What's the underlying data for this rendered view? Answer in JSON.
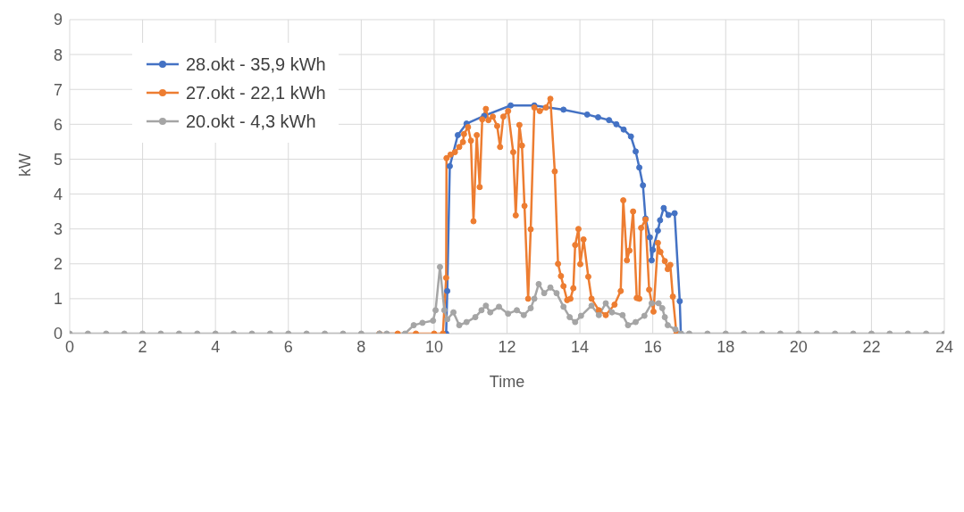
{
  "chart_data": {
    "type": "line",
    "xlabel": "Time",
    "ylabel": "kW",
    "xlim": [
      0,
      24
    ],
    "xticks": [
      0,
      2,
      4,
      6,
      8,
      10,
      12,
      14,
      16,
      18,
      20,
      22,
      24
    ],
    "ylim": [
      0,
      9
    ],
    "yticks": [
      0,
      1,
      2,
      3,
      4,
      5,
      6,
      7,
      8,
      9
    ],
    "grid": true,
    "legend": "top left",
    "marker": "circle",
    "line_style": "solid",
    "series": [
      {
        "name": "28.okt - 35,9 kWh",
        "color": "#4472c4",
        "x": [
          10.33,
          10.36,
          10.43,
          10.65,
          10.89,
          11.37,
          12.1,
          12.75,
          13.55,
          14.2,
          14.5,
          14.8,
          15.0,
          15.2,
          15.4,
          15.53,
          15.63,
          15.73,
          15.8,
          15.92,
          15.97,
          16.0,
          16.14,
          16.2,
          16.3,
          16.43,
          16.6,
          16.74,
          16.77
        ],
        "values": [
          0,
          1.22,
          4.8,
          5.69,
          6.02,
          6.24,
          6.54,
          6.54,
          6.42,
          6.28,
          6.2,
          6.12,
          6.0,
          5.85,
          5.65,
          5.22,
          4.76,
          4.25,
          3.3,
          2.76,
          2.1,
          2.4,
          2.95,
          3.25,
          3.6,
          3.4,
          3.45,
          0.93,
          0
        ]
      },
      {
        "name": "27.okt - 22,1 kWh",
        "color": "#ed7d31",
        "x": [
          8.5,
          9,
          9.5,
          10,
          10.24,
          10.33,
          10.34,
          10.45,
          10.57,
          10.69,
          10.79,
          10.82,
          10.93,
          11.01,
          11.08,
          11.17,
          11.25,
          11.32,
          11.42,
          11.49,
          11.61,
          11.73,
          11.81,
          11.9,
          12.03,
          12.17,
          12.24,
          12.34,
          12.41,
          12.48,
          12.58,
          12.65,
          12.75,
          12.9,
          13.07,
          13.19,
          13.31,
          13.4,
          13.48,
          13.55,
          13.65,
          13.74,
          13.82,
          13.87,
          13.96,
          14.01,
          14.1,
          14.23,
          14.32,
          14.52,
          14.71,
          14.95,
          15.12,
          15.19,
          15.29,
          15.36,
          15.46,
          15.56,
          15.63,
          15.68,
          15.8,
          15.9,
          16.02,
          16.14,
          16.21,
          16.33,
          16.41,
          16.48,
          16.55,
          16.65
        ],
        "values": [
          0,
          0,
          0,
          0,
          0,
          1.6,
          5.03,
          5.13,
          5.2,
          5.35,
          5.49,
          5.72,
          5.92,
          5.53,
          3.22,
          5.69,
          4.2,
          6.14,
          6.44,
          6.12,
          6.22,
          5.95,
          5.35,
          6.22,
          6.38,
          5.2,
          3.39,
          5.98,
          5.39,
          3.66,
          1.0,
          2.99,
          6.48,
          6.38,
          6.48,
          6.73,
          4.65,
          2.0,
          1.65,
          1.36,
          0.96,
          1.0,
          1.3,
          2.54,
          3.0,
          1.99,
          2.7,
          1.63,
          1.0,
          0.67,
          0.53,
          0.83,
          1.22,
          3.82,
          2.1,
          2.38,
          3.5,
          1.02,
          1.0,
          3.03,
          3.27,
          1.26,
          0.63,
          2.6,
          2.34,
          2.08,
          1.85,
          1.97,
          1.06,
          0
        ]
      },
      {
        "name": "20.okt - 4,3 kWh",
        "color": "#a5a5a5",
        "x": [
          0,
          0.5,
          1,
          1.5,
          2,
          2.5,
          3,
          3.5,
          4,
          4.5,
          5,
          5.5,
          6,
          6.5,
          7,
          7.5,
          8,
          8.5,
          8.7,
          9.2,
          9.44,
          9.68,
          9.97,
          10.04,
          10.16,
          10.28,
          10.36,
          10.53,
          10.69,
          10.89,
          11.13,
          11.3,
          11.42,
          11.54,
          11.78,
          12.03,
          12.27,
          12.46,
          12.65,
          12.75,
          12.87,
          13.02,
          13.19,
          13.36,
          13.55,
          13.72,
          13.87,
          14.03,
          14.32,
          14.52,
          14.71,
          14.88,
          15.17,
          15.32,
          15.53,
          15.77,
          15.97,
          16.16,
          16.26,
          16.33,
          16.41,
          16.62,
          16.77,
          17,
          17.5,
          18,
          18.5,
          19,
          19.5,
          20,
          20.5,
          21,
          21.5,
          22,
          22.5,
          23,
          23.5,
          24
        ],
        "values": [
          0,
          0,
          0,
          0,
          0,
          0,
          0,
          0,
          0,
          0,
          0,
          0,
          0,
          0,
          0,
          0,
          0,
          0,
          0,
          0,
          0.24,
          0.31,
          0.37,
          0.67,
          1.91,
          0.67,
          0.41,
          0.61,
          0.24,
          0.33,
          0.47,
          0.67,
          0.8,
          0.61,
          0.77,
          0.57,
          0.67,
          0.53,
          0.73,
          1.0,
          1.42,
          1.16,
          1.32,
          1.16,
          0.77,
          0.47,
          0.33,
          0.51,
          0.8,
          0.53,
          0.87,
          0.61,
          0.53,
          0.24,
          0.33,
          0.51,
          0.87,
          0.87,
          0.73,
          0.47,
          0.24,
          0.12,
          0,
          0,
          0,
          0,
          0,
          0,
          0,
          0,
          0,
          0,
          0,
          0,
          0,
          0,
          0,
          0
        ]
      }
    ]
  }
}
